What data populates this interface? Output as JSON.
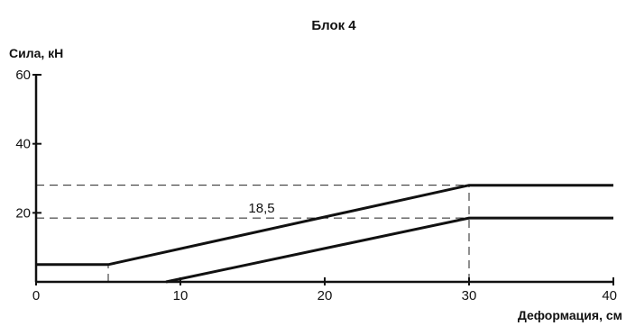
{
  "chart_data": {
    "type": "line",
    "title": "Блок 4",
    "ylabel": "Сила, кН",
    "xlabel": "Деформация, см",
    "xlim": [
      0,
      40
    ],
    "ylim": [
      0,
      60
    ],
    "x_ticks": [
      0,
      10,
      20,
      30,
      40
    ],
    "y_ticks": [
      20,
      40,
      60
    ],
    "grid": false,
    "series": [
      {
        "points": [
          [
            0,
            5
          ],
          [
            5,
            5
          ],
          [
            30,
            28
          ],
          [
            40,
            28
          ]
        ],
        "style": "upper-limit"
      },
      {
        "points": [
          [
            9,
            0
          ],
          [
            30,
            18.5
          ],
          [
            40,
            18.5
          ]
        ],
        "style": "lower-limit"
      }
    ],
    "reference_lines": [
      {
        "orientation": "horizontal",
        "y": 28,
        "x_from": 0,
        "x_to": 30,
        "dash": true
      },
      {
        "orientation": "horizontal",
        "y": 18.5,
        "x_from": 0,
        "x_to": 30,
        "dash": true
      },
      {
        "orientation": "vertical",
        "x": 5,
        "y_from": 0,
        "y_to": 5,
        "dash": true
      },
      {
        "orientation": "vertical",
        "x": 30,
        "y_from": 0,
        "y_to": 28,
        "dash": true
      }
    ],
    "annotations": [
      {
        "text": "18,5",
        "x": 15,
        "y": 18.5
      }
    ]
  }
}
